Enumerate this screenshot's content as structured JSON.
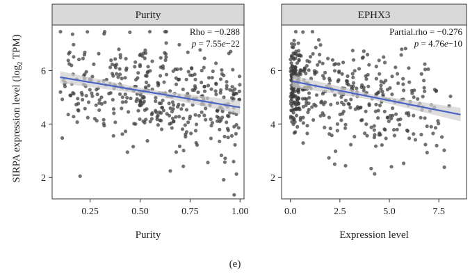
{
  "caption": "(e)",
  "ylabel_main": "SIRPA expression level (log",
  "ylabel_sub": "2",
  "ylabel_end": " TPM)",
  "chart_data": [
    {
      "type": "scatter",
      "title": "Purity",
      "xlabel": "Purity",
      "ylabel": "SIRPA expression level (log2 TPM)",
      "xlim": [
        0.06,
        1.02
      ],
      "ylim": [
        1.2,
        7.7
      ],
      "xticks": [
        0.25,
        0.5,
        0.75,
        1.0
      ],
      "xtick_labels": [
        "0.25",
        "0.50",
        "0.75",
        "1.00"
      ],
      "yticks": [
        2,
        4,
        6
      ],
      "ytick_labels": [
        "2",
        "4",
        "6"
      ],
      "annotations": [
        "Rho = −0.288",
        "p = 7.55e−22"
      ],
      "stat_label": "Rho = −0.288",
      "stat_p_prefix": "p",
      "stat_p_value": " = 7.55",
      "stat_p_e": "e",
      "stat_p_exp": "−22",
      "trend": {
        "x": [
          0.1,
          1.0
        ],
        "y": [
          5.75,
          4.62
        ]
      },
      "point_color": "#3a3a3a",
      "line_color": "#4a63c4",
      "band_color": "#cfcfcf",
      "seed": 11,
      "n_points": 430,
      "x_range": [
        0.1,
        1.0
      ],
      "y_center": 5.3,
      "y_spread": 1.05
    },
    {
      "type": "scatter",
      "title": "EPHX3",
      "xlabel": "Expression level",
      "ylabel": "",
      "xlim": [
        -0.45,
        8.9
      ],
      "ylim": [
        1.2,
        7.7
      ],
      "xticks": [
        0.0,
        2.5,
        5.0,
        7.5
      ],
      "xtick_labels": [
        "0.0",
        "2.5",
        "5.0",
        "7.5"
      ],
      "yticks": [
        2,
        4,
        6
      ],
      "ytick_labels": [
        "2",
        "4",
        "6"
      ],
      "annotations": [
        "Partial.rho = −0.276",
        "p = 4.76e−10"
      ],
      "stat_label": "Partial.rho = −0.276",
      "stat_p_prefix": "p",
      "stat_p_value": " = 4.76",
      "stat_p_e": "e",
      "stat_p_exp": "−10",
      "trend": {
        "x": [
          0.1,
          8.6
        ],
        "y": [
          5.6,
          4.35
        ]
      },
      "point_color": "#3a3a3a",
      "line_color": "#4a63c4",
      "band_color": "#cfcfcf",
      "seed": 29,
      "n_points": 450,
      "x_range": [
        0.0,
        8.6
      ],
      "y_center": 5.2,
      "y_spread": 1.05
    }
  ]
}
